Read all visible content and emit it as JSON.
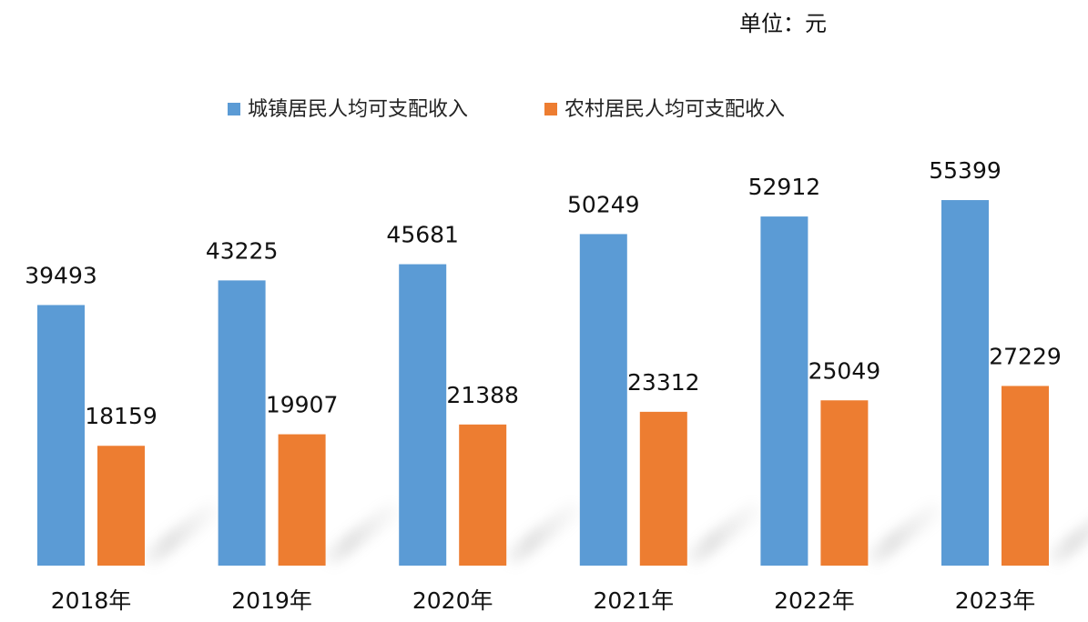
{
  "unit_label": "单位：元",
  "chart_data": {
    "type": "bar",
    "categories": [
      "2018年",
      "2019年",
      "2020年",
      "2021年",
      "2022年",
      "2023年"
    ],
    "series": [
      {
        "name": "城镇居民人均可支配收入",
        "color": "#5b9bd5",
        "values": [
          39493,
          43225,
          45681,
          50249,
          52912,
          55399
        ]
      },
      {
        "name": "农村居民人均可支配收入",
        "color": "#ed7d31",
        "values": [
          18159,
          19907,
          21388,
          23312,
          25049,
          27229
        ]
      }
    ],
    "ylim": [
      0,
      74000
    ],
    "grid": false,
    "legend_position": "top",
    "data_labels": true
  }
}
